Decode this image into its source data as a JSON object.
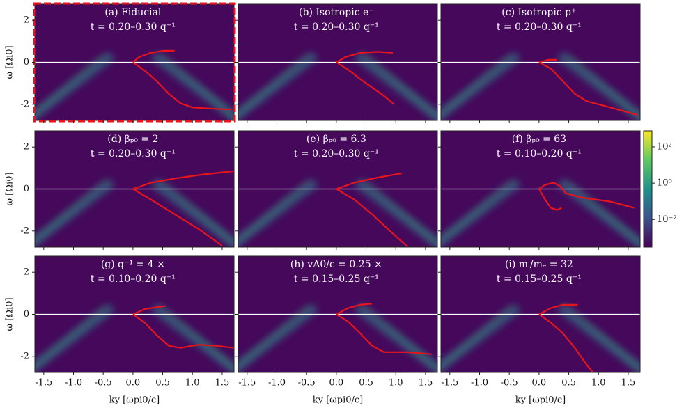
{
  "axes": {
    "xlim": [
      -1.65,
      1.7
    ],
    "ylim": [
      -2.77,
      2.77
    ],
    "xticks": [
      -1.5,
      -1.0,
      -0.5,
      0.0,
      0.5,
      1.0,
      1.5
    ],
    "yticks": [
      -2,
      0,
      2
    ],
    "xlabel": "ky [ωpi0/c]",
    "ylabel": "ω [Ωi0]",
    "colorbar": {
      "scale": "log",
      "zlim": [
        0.0003,
        760
      ],
      "colormap": "viridis",
      "ticks": [
        {
          "value": 0.01,
          "label": "10⁻²"
        },
        {
          "value": 1,
          "label": "10⁰"
        },
        {
          "value": 100,
          "label": "10²"
        }
      ]
    }
  },
  "chart_data": [
    {
      "type": "line",
      "title": "(a) Fiducial",
      "subtitle": "t = 0.20–0.30 q⁻¹",
      "highlight": true,
      "zero_line": 0,
      "zero_line_color": "#ffffff",
      "series": [
        {
          "color": "#e8141c",
          "x": [
            0,
            0.1,
            0.3,
            0.5,
            0.7
          ],
          "y": [
            0,
            0.25,
            0.45,
            0.55,
            0.55
          ]
        },
        {
          "color": "#e8141c",
          "x": [
            0,
            0.2,
            0.4,
            0.6,
            0.8,
            1.0,
            1.3,
            1.65
          ],
          "y": [
            0,
            -0.4,
            -0.9,
            -1.5,
            -1.95,
            -2.15,
            -2.2,
            -2.25
          ]
        }
      ]
    },
    {
      "type": "line",
      "title": "(b) Isotropic e⁻",
      "subtitle": "t = 0.20–0.30 q⁻¹",
      "zero_line": 0,
      "zero_line_color": "#ffffff",
      "series": [
        {
          "color": "#e8141c",
          "x": [
            0,
            0.15,
            0.4,
            0.7,
            0.95
          ],
          "y": [
            0,
            0.25,
            0.45,
            0.5,
            0.45
          ]
        },
        {
          "color": "#e8141c",
          "x": [
            0,
            0.2,
            0.4,
            0.6,
            0.8,
            0.97
          ],
          "y": [
            0,
            -0.35,
            -0.8,
            -1.2,
            -1.6,
            -2.0
          ]
        }
      ]
    },
    {
      "type": "line",
      "title": "(c) Isotropic p⁺",
      "subtitle": "t = 0.20–0.30 q⁻¹",
      "zero_line": 0,
      "zero_line_color": "#ffffff",
      "series": [
        {
          "color": "#e8141c",
          "x": [
            0,
            0.15,
            0.3
          ],
          "y": [
            0,
            0.12,
            0.12
          ]
        },
        {
          "color": "#e8141c",
          "x": [
            0,
            0.2,
            0.4,
            0.6,
            0.8,
            1.2,
            1.65
          ],
          "y": [
            0,
            -0.3,
            -0.9,
            -1.5,
            -1.85,
            -2.15,
            -2.5
          ]
        }
      ]
    },
    {
      "type": "line",
      "title": "(d) βₚ₀ = 2",
      "subtitle": "t = 0.20–0.30 q⁻¹",
      "zero_line": 0,
      "zero_line_color": "#ffffff",
      "series": [
        {
          "color": "#e8141c",
          "x": [
            0,
            0.3,
            0.7,
            1.2,
            1.7
          ],
          "y": [
            0,
            0.3,
            0.5,
            0.7,
            0.85
          ]
        },
        {
          "color": "#e8141c",
          "x": [
            0,
            0.3,
            0.7,
            1.1,
            1.5
          ],
          "y": [
            0,
            -0.5,
            -1.2,
            -1.9,
            -2.7
          ]
        }
      ]
    },
    {
      "type": "line",
      "title": "(e) βₚ₀ = 6.3",
      "subtitle": "t = 0.20–0.30 q⁻¹",
      "zero_line": 0,
      "zero_line_color": "#ffffff",
      "series": [
        {
          "color": "#e8141c",
          "x": [
            0,
            0.3,
            0.7,
            1.1
          ],
          "y": [
            0,
            0.3,
            0.55,
            0.75
          ]
        },
        {
          "color": "#e8141c",
          "x": [
            0,
            0.3,
            0.6,
            0.9,
            1.2
          ],
          "y": [
            0,
            -0.5,
            -1.2,
            -2.0,
            -2.75
          ]
        }
      ]
    },
    {
      "type": "line",
      "title": "(f) βₚ₀ = 63",
      "subtitle": "t = 0.10–0.20 q⁻¹",
      "zero_line": 0,
      "zero_line_color": "#ffffff",
      "series": [
        {
          "color": "#e8141c",
          "x": [
            0,
            0.1,
            0.25,
            0.35,
            0.45,
            0.7,
            1.2,
            1.6
          ],
          "y": [
            0,
            0.2,
            0.3,
            0.15,
            -0.2,
            -0.4,
            -0.6,
            -0.9
          ]
        },
        {
          "color": "#e8141c",
          "x": [
            0,
            0.1,
            0.2,
            0.3,
            0.38
          ],
          "y": [
            0,
            -0.5,
            -0.9,
            -1.0,
            -0.9
          ]
        }
      ]
    },
    {
      "type": "line",
      "title": "(g) q⁻¹ = 4 ×",
      "subtitle": "t = 0.10–0.20 q⁻¹",
      "zero_line": 0,
      "zero_line_color": "#ffffff",
      "series": [
        {
          "color": "#e8141c",
          "x": [
            0,
            0.2,
            0.55
          ],
          "y": [
            0,
            0.25,
            0.4
          ]
        },
        {
          "color": "#e8141c",
          "x": [
            0,
            0.2,
            0.4,
            0.6,
            0.8,
            1.1,
            1.4,
            1.7
          ],
          "y": [
            0,
            -0.4,
            -1.0,
            -1.5,
            -1.6,
            -1.45,
            -1.5,
            -1.6
          ]
        }
      ]
    },
    {
      "type": "line",
      "title": "(h) vA0/c = 0.25 ×",
      "subtitle": "t = 0.15–0.25 q⁻¹",
      "zero_line": 0,
      "zero_line_color": "#ffffff",
      "series": [
        {
          "color": "#e8141c",
          "x": [
            0,
            0.2,
            0.4,
            0.6
          ],
          "y": [
            0,
            0.3,
            0.45,
            0.5
          ]
        },
        {
          "color": "#e8141c",
          "x": [
            0,
            0.2,
            0.4,
            0.6,
            0.8,
            1.2,
            1.6
          ],
          "y": [
            0,
            -0.35,
            -0.9,
            -1.5,
            -1.8,
            -1.8,
            -1.9
          ]
        }
      ]
    },
    {
      "type": "line",
      "title": "(i) mᵢ/mₑ = 32",
      "subtitle": "t = 0.15–0.25 q⁻¹",
      "zero_line": 0,
      "zero_line_color": "#ffffff",
      "series": [
        {
          "color": "#e8141c",
          "x": [
            0,
            0.2,
            0.4,
            0.65
          ],
          "y": [
            0,
            0.3,
            0.45,
            0.45
          ]
        },
        {
          "color": "#e8141c",
          "x": [
            0,
            0.2,
            0.4,
            0.6,
            0.8,
            0.9
          ],
          "y": [
            0,
            -0.4,
            -0.9,
            -1.6,
            -2.4,
            -2.75
          ]
        }
      ]
    }
  ]
}
